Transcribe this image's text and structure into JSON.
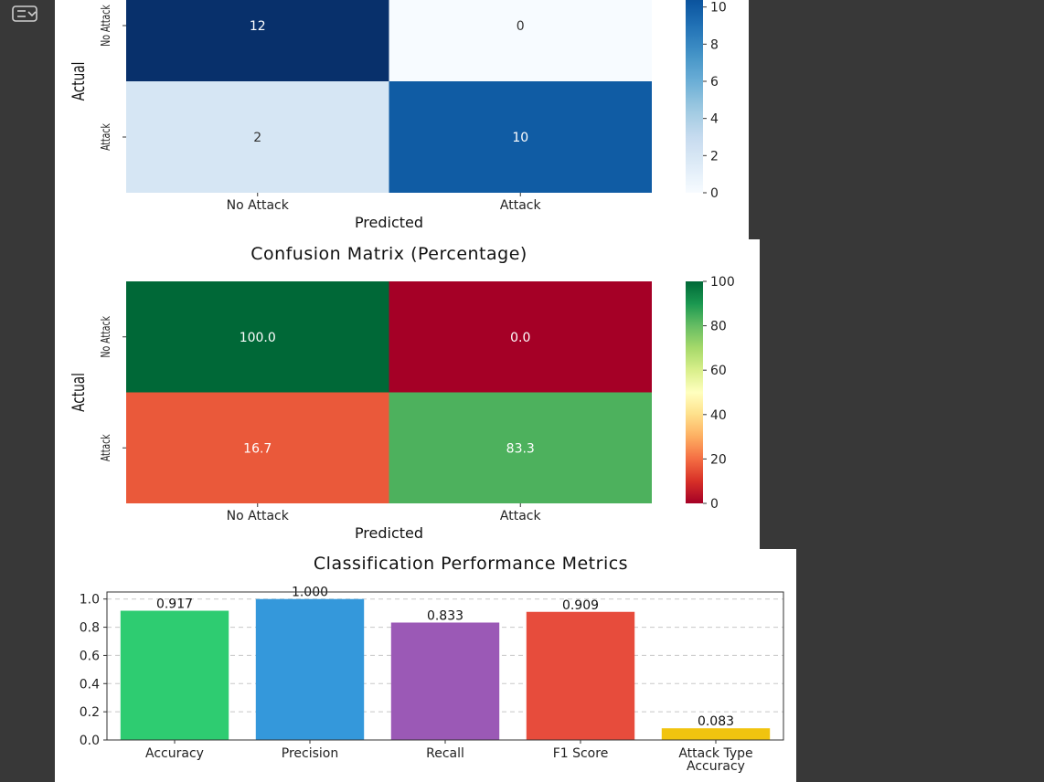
{
  "output_icon": "output-toggle-icon",
  "chart_data": [
    {
      "type": "heatmap",
      "title": "",
      "xlabel": "Predicted",
      "ylabel": "Actual",
      "x_categories": [
        "No Attack",
        "Attack"
      ],
      "y_categories": [
        "No Attack",
        "Attack"
      ],
      "values": [
        [
          12,
          0
        ],
        [
          2,
          10
        ]
      ],
      "cell_labels": [
        [
          "12",
          "0"
        ],
        [
          "2",
          "10"
        ]
      ],
      "colormap": "Blues",
      "colorbar": {
        "min": 0,
        "max": 12,
        "ticks": [
          0,
          2,
          4,
          6,
          8,
          10
        ],
        "tick_labels": [
          "0",
          "2",
          "4",
          "6",
          "8",
          "10"
        ]
      },
      "grid": false
    },
    {
      "type": "heatmap",
      "title": "Confusion Matrix (Percentage)",
      "xlabel": "Predicted",
      "ylabel": "Actual",
      "x_categories": [
        "No Attack",
        "Attack"
      ],
      "y_categories": [
        "No Attack",
        "Attack"
      ],
      "values": [
        [
          100.0,
          0.0
        ],
        [
          16.7,
          83.3
        ]
      ],
      "cell_labels": [
        [
          "100.0",
          "0.0"
        ],
        [
          "16.7",
          "83.3"
        ]
      ],
      "colormap": "RdYlGn",
      "colorbar": {
        "min": 0,
        "max": 100,
        "ticks": [
          0,
          20,
          40,
          60,
          80,
          100
        ],
        "tick_labels": [
          "0",
          "20",
          "40",
          "60",
          "80",
          "100"
        ]
      },
      "grid": false
    },
    {
      "type": "bar",
      "title": "Classification Performance Metrics",
      "categories": [
        "Accuracy",
        "Precision",
        "Recall",
        "F1 Score",
        "Attack Type Accuracy"
      ],
      "category_lines": [
        [
          "Accuracy"
        ],
        [
          "Precision"
        ],
        [
          "Recall"
        ],
        [
          "F1 Score"
        ],
        [
          "Attack Type",
          "Accuracy"
        ]
      ],
      "values": [
        0.917,
        1.0,
        0.833,
        0.909,
        0.083
      ],
      "value_labels": [
        "0.917",
        "1.000",
        "0.833",
        "0.909",
        "0.083"
      ],
      "colors": [
        "#2ecc71",
        "#3498db",
        "#9b59b6",
        "#e74c3c",
        "#f1c40f"
      ],
      "ylim": [
        0,
        1.05
      ],
      "yticks": [
        0.0,
        0.2,
        0.4,
        0.6,
        0.8,
        1.0
      ],
      "ytick_labels": [
        "0.0",
        "0.2",
        "0.4",
        "0.6",
        "0.8",
        "1.0"
      ],
      "xlabel": "",
      "ylabel": "",
      "grid": true,
      "grid_axis": "y"
    }
  ]
}
